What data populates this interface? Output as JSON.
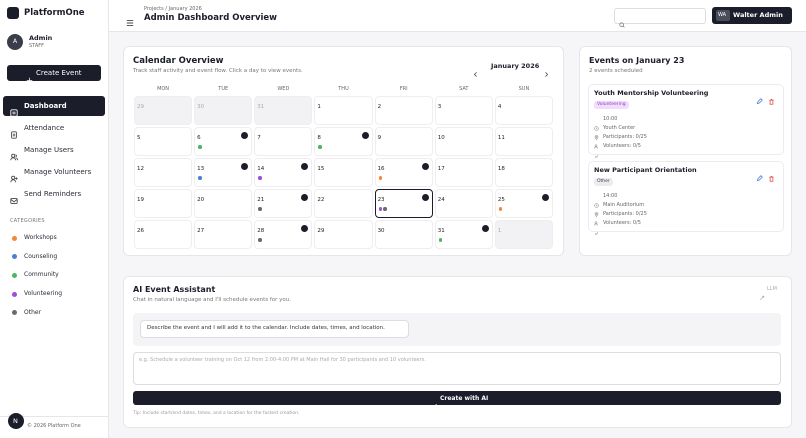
{
  "sidebar": {
    "brand": "PlatformOne",
    "user": {
      "initial": "A",
      "name": "Admin",
      "role": "STAFF"
    },
    "create_button": "Create Event",
    "nav": [
      "Dashboard",
      "Attendance",
      "Manage Users",
      "Manage Volunteers",
      "Send Reminders"
    ],
    "categories_title": "CATEGORIES",
    "categories": [
      {
        "name": "Workshops",
        "color": "#f0883a"
      },
      {
        "name": "Counseling",
        "color": "#4a7fd8"
      },
      {
        "name": "Community",
        "color": "#4cb462"
      },
      {
        "name": "Volunteering",
        "color": "#9b4fd6"
      },
      {
        "name": "Other",
        "color": "#666a73"
      }
    ],
    "footer_badge": "N",
    "footer": "© 2026 Platform One"
  },
  "header": {
    "breadcrumb": "Projects / January 2026",
    "title": "Admin Dashboard Overview",
    "user_initials": "WA",
    "user_name": "Walter Admin"
  },
  "calendar": {
    "title": "Calendar Overview",
    "subtitle": "Track staff activity and event flow. Click a day to view events.",
    "month": "January 2026",
    "weekdays": [
      "MON",
      "TUE",
      "WED",
      "THU",
      "FRI",
      "SAT",
      "SUN"
    ],
    "weeks": [
      [
        {
          "day": "29",
          "outside": true
        },
        {
          "day": "30",
          "outside": true
        },
        {
          "day": "31",
          "outside": true
        },
        {
          "day": "1"
        },
        {
          "day": "2"
        },
        {
          "day": "3"
        },
        {
          "day": "4"
        }
      ],
      [
        {
          "day": "5"
        },
        {
          "day": "6",
          "dots": [
            "#4cb462"
          ]
        },
        {
          "day": "7"
        },
        {
          "day": "8",
          "dots": [
            "#4cb462"
          ]
        },
        {
          "day": "9"
        },
        {
          "day": "10"
        },
        {
          "day": "11"
        }
      ],
      [
        {
          "day": "12"
        },
        {
          "day": "13",
          "dots": [
            "#4a7fd8"
          ]
        },
        {
          "day": "14",
          "dots": [
            "#9b4fd6"
          ]
        },
        {
          "day": "15"
        },
        {
          "day": "16",
          "dots": [
            "#f0883a"
          ]
        },
        {
          "day": "17"
        },
        {
          "day": "18"
        }
      ],
      [
        {
          "day": "19"
        },
        {
          "day": "20"
        },
        {
          "day": "21",
          "dots": [
            "#666a73"
          ]
        },
        {
          "day": "22"
        },
        {
          "day": "23",
          "dots": [
            "#9b4fd6",
            "#666a73"
          ],
          "selected": true
        },
        {
          "day": "24"
        },
        {
          "day": "25",
          "dots": [
            "#f0883a"
          ]
        }
      ],
      [
        {
          "day": "26"
        },
        {
          "day": "27"
        },
        {
          "day": "28",
          "dots": [
            "#666a73"
          ]
        },
        {
          "day": "29"
        },
        {
          "day": "30"
        },
        {
          "day": "31",
          "dots": [
            "#4cb462"
          ]
        },
        {
          "day": "1",
          "outside": true
        }
      ]
    ]
  },
  "events": {
    "title": "Events on January 23",
    "count_text": "2 events scheduled",
    "items": [
      {
        "title": "Youth Mentorship Volunteering",
        "tag": "Volunteering",
        "tag_bg": "#f1dcfb",
        "tag_fg": "#8a3fc4",
        "time": "10:00",
        "location": "Youth Center",
        "participants": "Participants: 0/25",
        "volunteers": "Volunteers: 0/5"
      },
      {
        "title": "New Participant Orientation",
        "tag": "Other",
        "tag_bg": "#ececef",
        "tag_fg": "#3a3d46",
        "time": "14:00",
        "location": "Main Auditorium",
        "participants": "Participants: 0/25",
        "volunteers": "Volunteers: 0/5"
      }
    ]
  },
  "ai": {
    "title": "AI Event Assistant",
    "badge": "LLM",
    "subtitle": "Chat in natural language and I'll schedule events for you.",
    "message": "Describe the event and I will add it to the calendar. Include dates, times, and location.",
    "placeholder": "e.g. Schedule a volunteer training on Oct 12 from 2:00-4:00 PM at Main Hall for 30 participants and 10 volunteers.",
    "button": "Create with AI",
    "tip": "Tip: Include start/end dates, times, and a location for the fastest creation."
  }
}
